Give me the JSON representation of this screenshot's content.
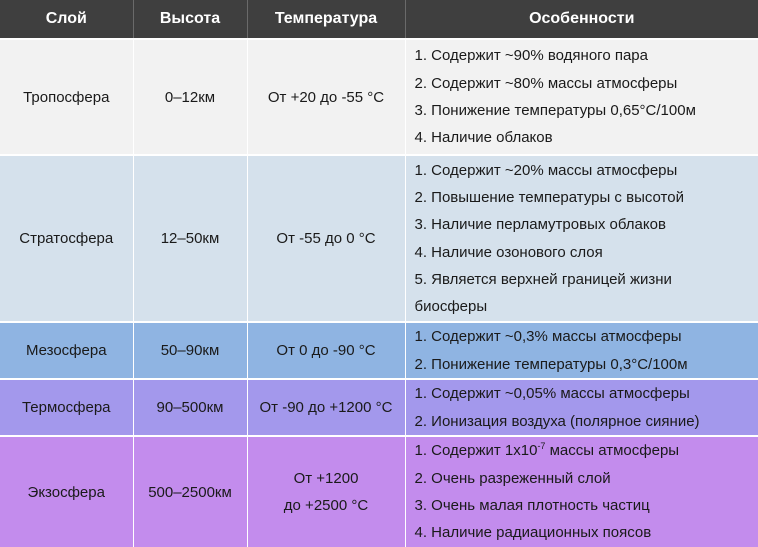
{
  "headers": {
    "layer": "Слой",
    "height": "Высота",
    "temperature": "Температура",
    "features": "Особенности"
  },
  "rows": [
    {
      "layer": "Тропосфера",
      "height": "0–12км",
      "temperature": "От +20 до -55 °С",
      "bg": "#f2f2f2",
      "features": [
        "1. Содержит ~90% водяного пара",
        "2. Содержит ~80% массы атмосферы",
        "3. Понижение температуры 0,65°С/100м",
        "4. Наличие облаков"
      ]
    },
    {
      "layer": "Стратосфера",
      "height": "12–50км",
      "temperature": "От -55 до 0 °С",
      "bg": "#d5e1ec",
      "features": [
        "1. Содержит ~20% массы атмосферы",
        "2. Повышение температуры с высотой",
        "3. Наличие перламутровых облаков",
        "4. Наличие озонового слоя",
        "5. Является верхней границей жизни",
        "биосферы"
      ]
    },
    {
      "layer": "Мезосфера",
      "height": "50–90км",
      "temperature": "От 0 до -90 °С",
      "bg": "#8fb4e2",
      "features": [
        "1. Содержит ~0,3% массы атмосферы",
        "2. Понижение температуры 0,3°С/100м"
      ]
    },
    {
      "layer": "Термосфера",
      "height": "90–500км",
      "temperature": "От -90 до +1200 °С",
      "bg": "#a398ec",
      "features": [
        "1. Содержит ~0,05% массы атмосферы",
        "2. Ионизация воздуха (полярное сияние)"
      ]
    },
    {
      "layer": "Экзосфера",
      "height": "500–2500км",
      "temperature_line1": "От +1200",
      "temperature_line2": "до +2500 °С",
      "bg": "#c38ced",
      "features": [
        "1. Содержит 1x10-7 массы атмосферы",
        "2. Очень разреженный слой",
        "3. Очень малая плотность частиц",
        "4. Наличие радиационных поясов"
      ]
    }
  ]
}
